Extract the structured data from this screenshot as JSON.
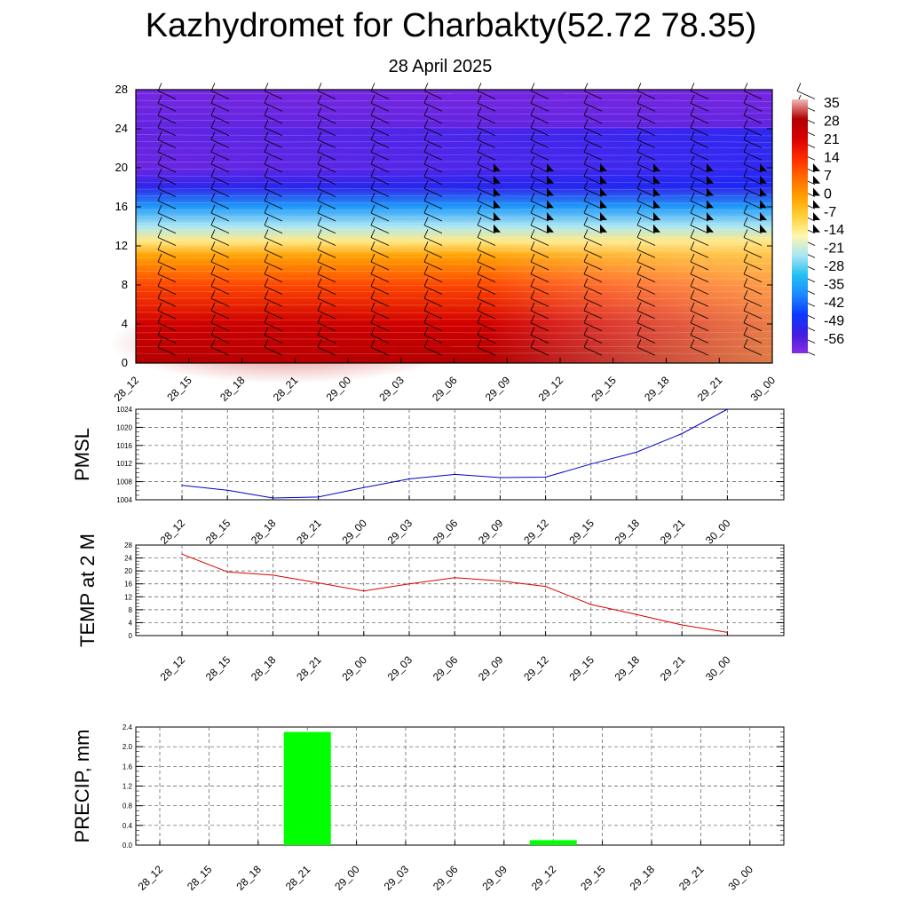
{
  "header": {
    "title": "Kazhydromet for Charbakty(52.72 78.35)",
    "date": "28 April 2025"
  },
  "chart_data": [
    {
      "type": "heatmap",
      "name": "temperature-cross-section",
      "x_ticks": [
        "28_12",
        "28_15",
        "28_18",
        "28_21",
        "29_00",
        "29_03",
        "29_06",
        "29_09",
        "29_12",
        "29_15",
        "29_18",
        "29_21",
        "30_00"
      ],
      "y_ticks": [
        0,
        4,
        8,
        12,
        16,
        20,
        24,
        28
      ],
      "ylim": [
        0,
        28
      ],
      "colorbar_labels": [
        "35",
        "28",
        "21",
        "14",
        "7",
        "0",
        "-7",
        "-14",
        "-21",
        "-28",
        "-35",
        "-42",
        "-49",
        "-56"
      ],
      "colorbar_range": [
        -60,
        38
      ],
      "colorbar_colors": [
        "#8a2be2",
        "#3f1de0",
        "#0a3aff",
        "#1e88ff",
        "#22c0f0",
        "#a8e6f5",
        "#fff6b0",
        "#ffd23a",
        "#ffa000",
        "#ff6a00",
        "#ff2a00",
        "#d80000",
        "#b00000",
        "#f2b8b8"
      ],
      "profile": [
        {
          "level": 0,
          "temp": 30
        },
        {
          "level": 4,
          "temp": 24
        },
        {
          "level": 8,
          "temp": 12
        },
        {
          "level": 11,
          "temp": 0
        },
        {
          "level": 12.5,
          "temp": -12
        },
        {
          "level": 14,
          "temp": -22
        },
        {
          "level": 16,
          "temp": -35
        },
        {
          "level": 18,
          "temp": -50
        },
        {
          "level": 20,
          "temp": -57
        },
        {
          "level": 24,
          "temp": -56
        },
        {
          "level": 28,
          "temp": -58
        }
      ]
    },
    {
      "type": "line",
      "name": "pmsl",
      "ylabel": "PMSL",
      "categories": [
        "28_12",
        "28_15",
        "28_18",
        "28_21",
        "29_00",
        "29_03",
        "29_06",
        "29_09",
        "29_12",
        "29_15",
        "29_18",
        "29_21",
        "30_00"
      ],
      "values": [
        1007.2,
        1006.1,
        1004.4,
        1004.6,
        1006.7,
        1008.6,
        1009.6,
        1008.9,
        1009.0,
        1011.9,
        1014.5,
        1018.6,
        1024.0
      ],
      "y_ticks": [
        1004,
        1008,
        1012,
        1016,
        1020,
        1024
      ],
      "ylim": [
        1004,
        1024
      ],
      "color": "#0000cc"
    },
    {
      "type": "line",
      "name": "temp-2m",
      "ylabel": "TEMP at 2 M",
      "categories": [
        "28_12",
        "28_15",
        "28_18",
        "28_21",
        "29_00",
        "29_03",
        "29_06",
        "29_09",
        "29_12",
        "29_15",
        "29_18",
        "29_21",
        "30_00"
      ],
      "values": [
        25.2,
        19.7,
        18.7,
        16.3,
        13.8,
        16.0,
        17.9,
        16.9,
        15.2,
        9.6,
        6.5,
        3.3,
        1.0
      ],
      "y_ticks": [
        0,
        4,
        8,
        12,
        16,
        20,
        24,
        28
      ],
      "ylim": [
        0,
        28
      ],
      "color": "#dd0000"
    },
    {
      "type": "bar",
      "name": "precip",
      "ylabel": "PRECIP, mm",
      "categories": [
        "28_12",
        "28_15",
        "28_18",
        "28_21",
        "29_00",
        "29_03",
        "29_06",
        "29_09",
        "29_12",
        "29_15",
        "29_18",
        "29_21",
        "30_00"
      ],
      "values": [
        0,
        0,
        0,
        2.3,
        0,
        0,
        0,
        0,
        0.1,
        0,
        0,
        0,
        0
      ],
      "y_ticks": [
        "0.0",
        "0.4",
        "0.8",
        "1.2",
        "1.6",
        "2.0",
        "2.4"
      ],
      "ylim": [
        0,
        2.4
      ],
      "color": "#00ff00"
    }
  ]
}
